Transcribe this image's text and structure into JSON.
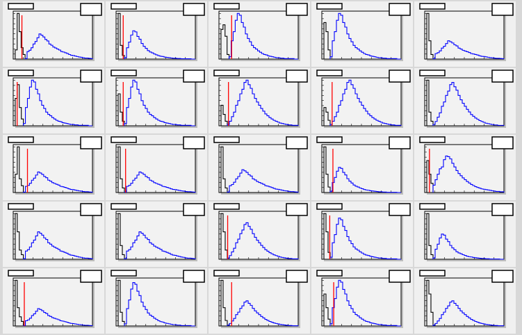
{
  "chart_data": {
    "type": "histogram-grid",
    "rows": 5,
    "cols": 5,
    "colors": {
      "low_range": "#000000",
      "high_range": "#0000ff",
      "cut_line": "#ff0000",
      "frame_bg": "#f2f2f2"
    },
    "shapes": {
      "A": [
        2,
        30,
        35,
        45,
        60,
        70,
        85,
        100,
        95,
        88,
        78,
        72,
        60,
        55,
        48,
        44,
        40,
        36,
        30,
        28,
        25,
        22,
        18,
        15,
        14,
        12,
        10,
        8,
        7,
        5,
        4,
        4,
        3,
        2
      ],
      "B": [
        5,
        40,
        60,
        85,
        100,
        96,
        80,
        70,
        55,
        45,
        38,
        30,
        25,
        22,
        18,
        15,
        12,
        10,
        9,
        7,
        6,
        5,
        4,
        3,
        3,
        2,
        2,
        1,
        1,
        1,
        1,
        1,
        0,
        0
      ],
      "C": [
        3,
        10,
        20,
        30,
        45,
        55,
        70,
        80,
        95,
        100,
        90,
        82,
        70,
        60,
        52,
        45,
        38,
        32,
        26,
        22,
        18,
        15,
        12,
        10,
        8,
        6,
        5,
        4,
        3,
        2,
        2,
        1,
        1,
        1
      ],
      "D": [
        20,
        35,
        50,
        65,
        70,
        90,
        100,
        98,
        92,
        80,
        70,
        60,
        52,
        46,
        40,
        35,
        30,
        26,
        22,
        19,
        16,
        14,
        12,
        10,
        9,
        8,
        7,
        6,
        5,
        4,
        3,
        3,
        2,
        2
      ]
    },
    "pads": [
      {
        "black": [
          0,
          20,
          100,
          60,
          25,
          10
        ],
        "blue": "A",
        "blue_peak": 55,
        "cut": 0.11
      },
      {
        "black": [
          0,
          100,
          30,
          8
        ],
        "blue": "B",
        "blue_peak": 62,
        "cut": 0.09
      },
      {
        "black": [
          0,
          65,
          75,
          50,
          10
        ],
        "blue": "B",
        "blue_peak": 100,
        "cut": 0.16
      },
      {
        "black": [
          0,
          80,
          60,
          20
        ],
        "blue": "B",
        "blue_peak": 100,
        "cut": null
      },
      {
        "black": [
          0,
          100,
          40,
          10
        ],
        "blue": "A",
        "blue_peak": 40,
        "cut": null
      },
      {
        "black": [
          0,
          60,
          90,
          40,
          15
        ],
        "blue": "B",
        "blue_peak": 100,
        "cut": 0.05
      },
      {
        "black": [
          0,
          70,
          30,
          10
        ],
        "blue": "B",
        "blue_peak": 100,
        "cut": 0.09
      },
      {
        "black": [
          0,
          45,
          25,
          10
        ],
        "blue": "C",
        "blue_peak": 100,
        "cut": 0.12
      },
      {
        "black": [
          0,
          40,
          30,
          12
        ],
        "blue": "C",
        "blue_peak": 100,
        "cut": 0.13
      },
      {
        "black": [
          0,
          100,
          30,
          10
        ],
        "blue": "C",
        "blue_peak": 95,
        "cut": null
      },
      {
        "black": [
          0,
          40,
          100,
          30,
          15
        ],
        "blue": "A",
        "blue_peak": 45,
        "cut": 0.18
      },
      {
        "black": [
          0,
          100,
          30,
          10
        ],
        "blue": "A",
        "blue_peak": 45,
        "cut": 0.12
      },
      {
        "black": [
          0,
          100,
          30,
          10
        ],
        "blue": "A",
        "blue_peak": 50,
        "cut": null
      },
      {
        "black": [
          0,
          100,
          40,
          12
        ],
        "blue": "B",
        "blue_peak": 55,
        "cut": 0.14
      },
      {
        "black": [
          0,
          70,
          40,
          20
        ],
        "blue": "D",
        "blue_peak": 80,
        "cut": 0.06
      },
      {
        "black": [
          0,
          100,
          60,
          20,
          10
        ],
        "blue": "A",
        "blue_peak": 60,
        "cut": null
      },
      {
        "black": [
          0,
          100,
          30,
          10
        ],
        "blue": "A",
        "blue_peak": 60,
        "cut": null
      },
      {
        "black": [
          0,
          100,
          60,
          20
        ],
        "blue": "C",
        "blue_peak": 80,
        "cut": 0.11
      },
      {
        "black": [
          0,
          100,
          60,
          15
        ],
        "blue": "B",
        "blue_peak": 90,
        "cut": 0.1
      },
      {
        "black": [
          0,
          100,
          30,
          10
        ],
        "blue": "B",
        "blue_peak": 55,
        "cut": null
      },
      {
        "black": [
          0,
          100,
          40,
          20,
          10
        ],
        "blue": "A",
        "blue_peak": 38,
        "cut": 0.14
      },
      {
        "black": [
          0,
          100,
          30,
          10
        ],
        "blue": "B",
        "blue_peak": 95,
        "cut": null
      },
      {
        "black": [
          0,
          100,
          40,
          12
        ],
        "blue": "C",
        "blue_peak": 55,
        "cut": 0.16
      },
      {
        "black": [
          0,
          70,
          40,
          15
        ],
        "blue": "B",
        "blue_peak": 100,
        "cut": 0.15
      },
      {
        "black": [
          0,
          100,
          70,
          30
        ],
        "blue": "C",
        "blue_peak": 55,
        "cut": null
      }
    ]
  }
}
